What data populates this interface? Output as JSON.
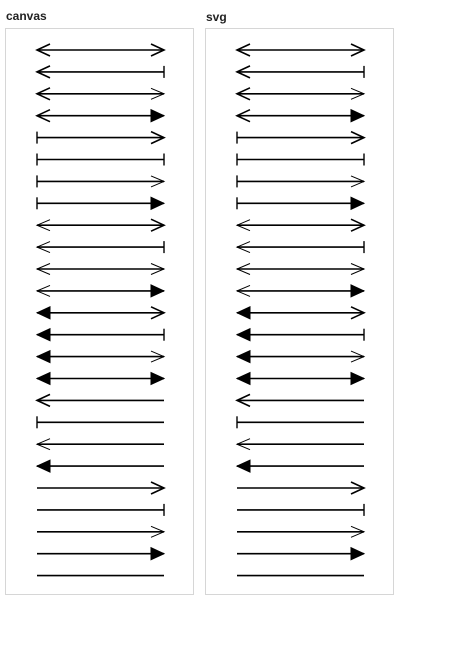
{
  "panels": [
    {
      "id": "canvas",
      "title": "canvas"
    },
    {
      "id": "svg",
      "title": "svg"
    }
  ],
  "arrow_rows": [
    {
      "start": "open",
      "end": "open"
    },
    {
      "start": "open",
      "end": "bar"
    },
    {
      "start": "open",
      "end": "thin"
    },
    {
      "start": "open",
      "end": "filled"
    },
    {
      "start": "bar",
      "end": "open"
    },
    {
      "start": "bar",
      "end": "bar"
    },
    {
      "start": "bar",
      "end": "thin"
    },
    {
      "start": "bar",
      "end": "filled"
    },
    {
      "start": "thin",
      "end": "open"
    },
    {
      "start": "thin",
      "end": "bar"
    },
    {
      "start": "thin",
      "end": "thin"
    },
    {
      "start": "thin",
      "end": "filled"
    },
    {
      "start": "filled",
      "end": "open"
    },
    {
      "start": "filled",
      "end": "bar"
    },
    {
      "start": "filled",
      "end": "thin"
    },
    {
      "start": "filled",
      "end": "filled"
    },
    {
      "start": "open",
      "end": "none"
    },
    {
      "start": "bar",
      "end": "none"
    },
    {
      "start": "thin",
      "end": "none"
    },
    {
      "start": "filled",
      "end": "none"
    },
    {
      "start": "none",
      "end": "open"
    },
    {
      "start": "none",
      "end": "bar"
    },
    {
      "start": "none",
      "end": "thin"
    },
    {
      "start": "none",
      "end": "filled"
    },
    {
      "start": "none",
      "end": "none"
    }
  ],
  "colors": {
    "stroke": "#000000",
    "panel_border": "#d6d6d6",
    "title": "#222222"
  }
}
